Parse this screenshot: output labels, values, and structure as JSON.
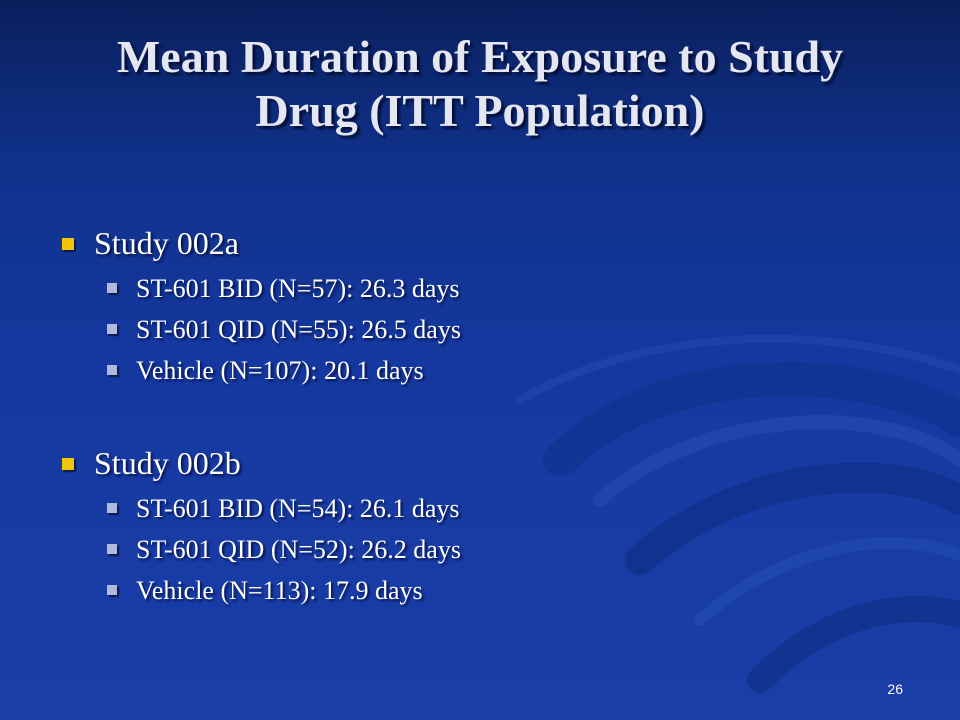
{
  "slide": {
    "title_line1": "Mean Duration of Exposure to Study",
    "title_line2": "Drug (ITT Population)",
    "sections": [
      {
        "label": "Study 002a",
        "items": [
          "ST-601 BID (N=57): 26.3 days",
          "ST-601 QID (N=55): 26.5 days",
          "Vehicle (N=107): 20.1 days"
        ]
      },
      {
        "label": "Study 002b",
        "items": [
          "ST-601 BID (N=54): 26.1 days",
          "ST-601 QID (N=52): 26.2 days",
          "Vehicle (N=113): 17.9 days"
        ]
      }
    ],
    "page_number": "26",
    "colors": {
      "background": "#1538a0",
      "title": "#e4e7f2",
      "primary_bullet": "#f5c400",
      "secondary_bullet": "#b3b8dd"
    }
  }
}
